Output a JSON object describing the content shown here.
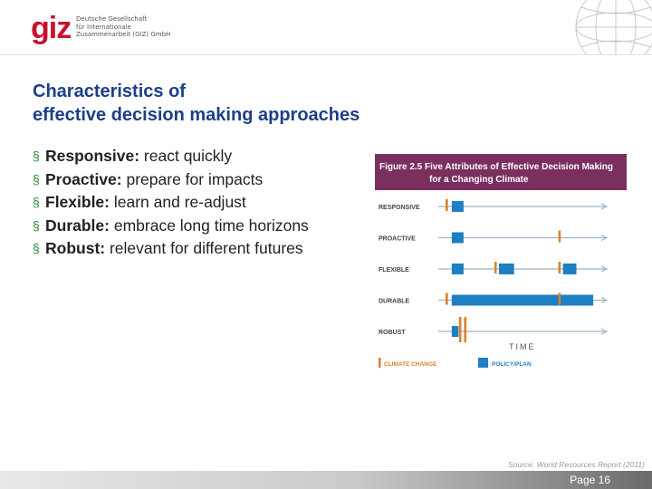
{
  "header": {
    "logo": "giz",
    "org_lines": [
      "Deutsche Gesellschaft",
      "für Internationale",
      "Zusammenarbeit (GIZ) GmbH"
    ],
    "globe_icon": "globe-icon"
  },
  "slide": {
    "title_line1": "Characteristics of",
    "title_line2": "effective decision making approaches",
    "bullets": [
      {
        "bold": "Responsive:",
        "text": " react quickly"
      },
      {
        "bold": "Proactive:",
        "text": " prepare for impacts"
      },
      {
        "bold": "Flexible:",
        "text": " learn and re-adjust"
      },
      {
        "bold": "Durable:",
        "text": " embrace long time horizons"
      },
      {
        "bold": "Robust:",
        "text": " relevant for different futures"
      }
    ],
    "bullet_marker": "§"
  },
  "figure": {
    "caption_line1": "Figure 2.5  Five Attributes of Effective Decision Making",
    "caption_line2": "for a Changing Climate",
    "time_label": "TIME",
    "legend": {
      "climate_change": "CLIMATE CHANGE",
      "policy_plan": "POLICY/PLAN"
    },
    "colors": {
      "header": "#7a2f5f",
      "orange": "#d9822b",
      "blue": "#1e7fc2",
      "arrow": "#9fb3c8"
    },
    "rows": [
      {
        "label": "RESPONSIVE",
        "climate": [
          0.05
        ],
        "policy": [
          [
            0.08,
            0.15
          ]
        ]
      },
      {
        "label": "PROACTIVE",
        "climate": [
          0.72
        ],
        "policy": [
          [
            0.08,
            0.15
          ]
        ]
      },
      {
        "label": "FLEXIBLE",
        "climate": [
          0.34,
          0.72
        ],
        "policy": [
          [
            0.08,
            0.15
          ],
          [
            0.36,
            0.45
          ],
          [
            0.74,
            0.82
          ]
        ]
      },
      {
        "label": "DURABLE",
        "climate": [
          0.05,
          0.72
        ],
        "policy": [
          [
            0.08,
            0.92
          ]
        ]
      },
      {
        "label": "ROBUST",
        "climate": [
          0.13,
          0.16
        ],
        "policy": [
          [
            0.08,
            0.12
          ]
        ]
      }
    ]
  },
  "footer": {
    "source": "Source: World Resources Report (2011)",
    "page": "Page 16"
  }
}
